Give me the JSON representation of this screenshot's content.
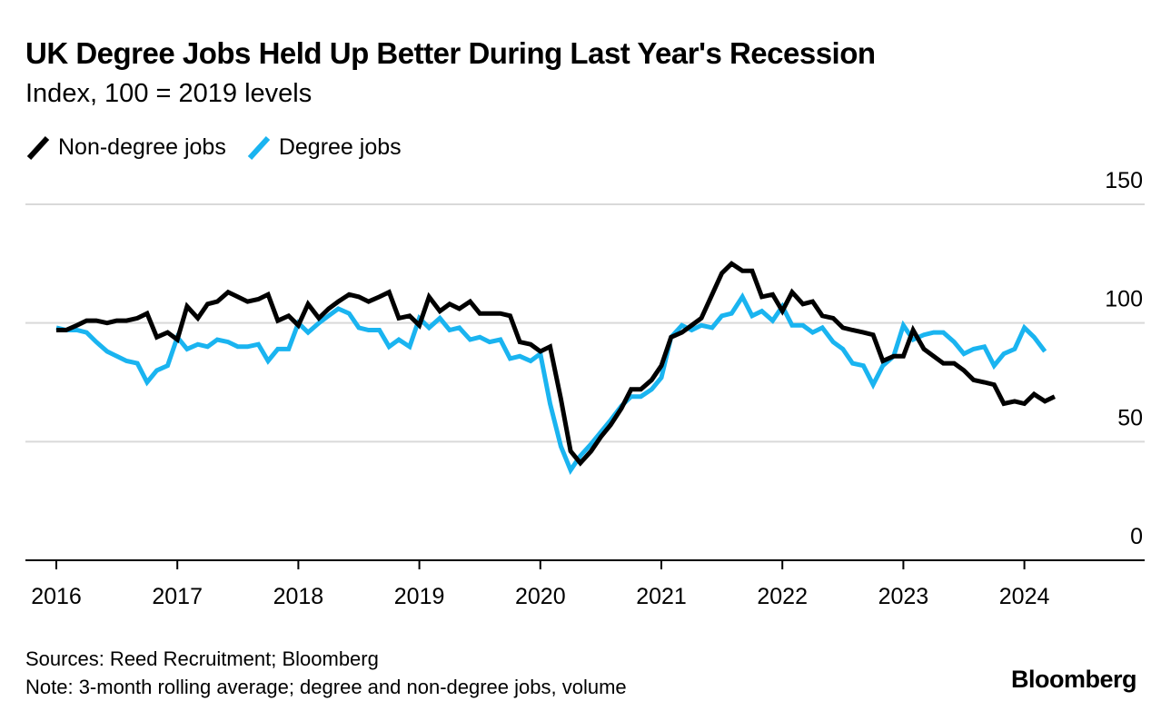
{
  "colors": {
    "non_degree": "#000000",
    "degree": "#1ab4f0",
    "grid": "#d9d9d9",
    "axis": "#000000"
  },
  "chart_data": {
    "type": "line",
    "title": "UK Degree Jobs Held Up Better During Last Year's Recession",
    "subtitle": "Index, 100 = 2019 levels",
    "xlabel": "",
    "ylabel": "",
    "ylim": [
      0,
      150
    ],
    "yticks": [
      0,
      50,
      100,
      150
    ],
    "xticks": [
      "2016",
      "2017",
      "2018",
      "2019",
      "2020",
      "2021",
      "2022",
      "2023",
      "2024"
    ],
    "xlim": [
      2016.0,
      2025.0
    ],
    "legend_position": "top-left",
    "grid": true,
    "series": [
      {
        "name": "Non-degree jobs",
        "color": "#000000",
        "points": [
          [
            2016.0,
            97
          ],
          [
            2016.08,
            97
          ],
          [
            2016.17,
            99
          ],
          [
            2016.25,
            101
          ],
          [
            2016.33,
            101
          ],
          [
            2016.42,
            100
          ],
          [
            2016.5,
            101
          ],
          [
            2016.58,
            101
          ],
          [
            2016.67,
            102
          ],
          [
            2016.75,
            104
          ],
          [
            2016.83,
            94
          ],
          [
            2016.92,
            96
          ],
          [
            2017.0,
            93
          ],
          [
            2017.08,
            107
          ],
          [
            2017.17,
            102
          ],
          [
            2017.25,
            108
          ],
          [
            2017.33,
            109
          ],
          [
            2017.42,
            113
          ],
          [
            2017.5,
            111
          ],
          [
            2017.58,
            109
          ],
          [
            2017.67,
            110
          ],
          [
            2017.75,
            112
          ],
          [
            2017.83,
            101
          ],
          [
            2017.92,
            103
          ],
          [
            2018.0,
            99
          ],
          [
            2018.08,
            108
          ],
          [
            2018.17,
            102
          ],
          [
            2018.25,
            106
          ],
          [
            2018.33,
            109
          ],
          [
            2018.42,
            112
          ],
          [
            2018.5,
            111
          ],
          [
            2018.58,
            109
          ],
          [
            2018.67,
            111
          ],
          [
            2018.75,
            113
          ],
          [
            2018.83,
            102
          ],
          [
            2018.92,
            103
          ],
          [
            2019.0,
            99
          ],
          [
            2019.08,
            111
          ],
          [
            2019.17,
            105
          ],
          [
            2019.25,
            108
          ],
          [
            2019.33,
            106
          ],
          [
            2019.42,
            109
          ],
          [
            2019.5,
            104
          ],
          [
            2019.58,
            104
          ],
          [
            2019.67,
            104
          ],
          [
            2019.75,
            103
          ],
          [
            2019.83,
            92
          ],
          [
            2019.92,
            91
          ],
          [
            2020.0,
            88
          ],
          [
            2020.08,
            90
          ],
          [
            2020.17,
            68
          ],
          [
            2020.25,
            46
          ],
          [
            2020.33,
            41
          ],
          [
            2020.42,
            46
          ],
          [
            2020.5,
            52
          ],
          [
            2020.58,
            57
          ],
          [
            2020.67,
            64
          ],
          [
            2020.75,
            72
          ],
          [
            2020.83,
            72
          ],
          [
            2020.92,
            76
          ],
          [
            2021.0,
            82
          ],
          [
            2021.08,
            94
          ],
          [
            2021.17,
            96
          ],
          [
            2021.25,
            99
          ],
          [
            2021.33,
            102
          ],
          [
            2021.42,
            112
          ],
          [
            2021.5,
            121
          ],
          [
            2021.58,
            125
          ],
          [
            2021.67,
            122
          ],
          [
            2021.75,
            122
          ],
          [
            2021.83,
            111
          ],
          [
            2021.92,
            112
          ],
          [
            2022.0,
            105
          ],
          [
            2022.08,
            113
          ],
          [
            2022.17,
            108
          ],
          [
            2022.25,
            109
          ],
          [
            2022.33,
            103
          ],
          [
            2022.42,
            102
          ],
          [
            2022.5,
            98
          ],
          [
            2022.58,
            97
          ],
          [
            2022.67,
            96
          ],
          [
            2022.75,
            95
          ],
          [
            2022.83,
            84
          ],
          [
            2022.92,
            86
          ],
          [
            2023.0,
            86
          ],
          [
            2023.08,
            97
          ],
          [
            2023.17,
            89
          ],
          [
            2023.25,
            86
          ],
          [
            2023.33,
            83
          ],
          [
            2023.42,
            83
          ],
          [
            2023.5,
            80
          ],
          [
            2023.58,
            76
          ],
          [
            2023.67,
            75
          ],
          [
            2023.75,
            74
          ],
          [
            2023.83,
            66
          ],
          [
            2023.92,
            67
          ],
          [
            2024.0,
            66
          ],
          [
            2024.08,
            70
          ],
          [
            2024.17,
            67
          ],
          [
            2024.25,
            69
          ]
        ]
      },
      {
        "name": "Degree jobs",
        "color": "#1ab4f0",
        "points": [
          [
            2016.0,
            98
          ],
          [
            2016.08,
            97
          ],
          [
            2016.17,
            97
          ],
          [
            2016.25,
            96
          ],
          [
            2016.33,
            92
          ],
          [
            2016.42,
            88
          ],
          [
            2016.5,
            86
          ],
          [
            2016.58,
            84
          ],
          [
            2016.67,
            83
          ],
          [
            2016.75,
            75
          ],
          [
            2016.83,
            80
          ],
          [
            2016.92,
            82
          ],
          [
            2017.0,
            94
          ],
          [
            2017.08,
            89
          ],
          [
            2017.17,
            91
          ],
          [
            2017.25,
            90
          ],
          [
            2017.33,
            93
          ],
          [
            2017.42,
            92
          ],
          [
            2017.5,
            90
          ],
          [
            2017.58,
            90
          ],
          [
            2017.67,
            91
          ],
          [
            2017.75,
            84
          ],
          [
            2017.83,
            89
          ],
          [
            2017.92,
            89
          ],
          [
            2018.0,
            100
          ],
          [
            2018.08,
            96
          ],
          [
            2018.17,
            100
          ],
          [
            2018.25,
            103
          ],
          [
            2018.33,
            106
          ],
          [
            2018.42,
            104
          ],
          [
            2018.5,
            98
          ],
          [
            2018.58,
            97
          ],
          [
            2018.67,
            97
          ],
          [
            2018.75,
            90
          ],
          [
            2018.83,
            93
          ],
          [
            2018.92,
            90
          ],
          [
            2019.0,
            102
          ],
          [
            2019.08,
            98
          ],
          [
            2019.17,
            102
          ],
          [
            2019.25,
            97
          ],
          [
            2019.33,
            98
          ],
          [
            2019.42,
            93
          ],
          [
            2019.5,
            94
          ],
          [
            2019.58,
            92
          ],
          [
            2019.67,
            93
          ],
          [
            2019.75,
            85
          ],
          [
            2019.83,
            86
          ],
          [
            2019.92,
            84
          ],
          [
            2020.0,
            87
          ],
          [
            2020.08,
            66
          ],
          [
            2020.17,
            48
          ],
          [
            2020.25,
            38
          ],
          [
            2020.33,
            44
          ],
          [
            2020.42,
            49
          ],
          [
            2020.5,
            54
          ],
          [
            2020.58,
            59
          ],
          [
            2020.67,
            65
          ],
          [
            2020.75,
            69
          ],
          [
            2020.83,
            69
          ],
          [
            2020.92,
            72
          ],
          [
            2021.0,
            77
          ],
          [
            2021.08,
            94
          ],
          [
            2021.17,
            99
          ],
          [
            2021.25,
            97
          ],
          [
            2021.33,
            99
          ],
          [
            2021.42,
            98
          ],
          [
            2021.5,
            103
          ],
          [
            2021.58,
            104
          ],
          [
            2021.67,
            111
          ],
          [
            2021.75,
            103
          ],
          [
            2021.83,
            105
          ],
          [
            2021.92,
            101
          ],
          [
            2022.0,
            107
          ],
          [
            2022.08,
            99
          ],
          [
            2022.17,
            99
          ],
          [
            2022.25,
            96
          ],
          [
            2022.33,
            98
          ],
          [
            2022.42,
            92
          ],
          [
            2022.5,
            89
          ],
          [
            2022.58,
            83
          ],
          [
            2022.67,
            82
          ],
          [
            2022.75,
            74
          ],
          [
            2022.83,
            82
          ],
          [
            2022.92,
            86
          ],
          [
            2023.0,
            99
          ],
          [
            2023.08,
            93
          ],
          [
            2023.17,
            95
          ],
          [
            2023.25,
            96
          ],
          [
            2023.33,
            96
          ],
          [
            2023.42,
            92
          ],
          [
            2023.5,
            87
          ],
          [
            2023.58,
            89
          ],
          [
            2023.67,
            90
          ],
          [
            2023.75,
            82
          ],
          [
            2023.83,
            87
          ],
          [
            2023.92,
            89
          ],
          [
            2024.0,
            98
          ],
          [
            2024.08,
            94
          ],
          [
            2024.17,
            88
          ]
        ]
      }
    ]
  },
  "footer": {
    "sources": "Sources: Reed Recruitment; Bloomberg",
    "note": "Note: 3-month rolling average; degree and non-degree jobs, volume"
  },
  "brand": "Bloomberg"
}
